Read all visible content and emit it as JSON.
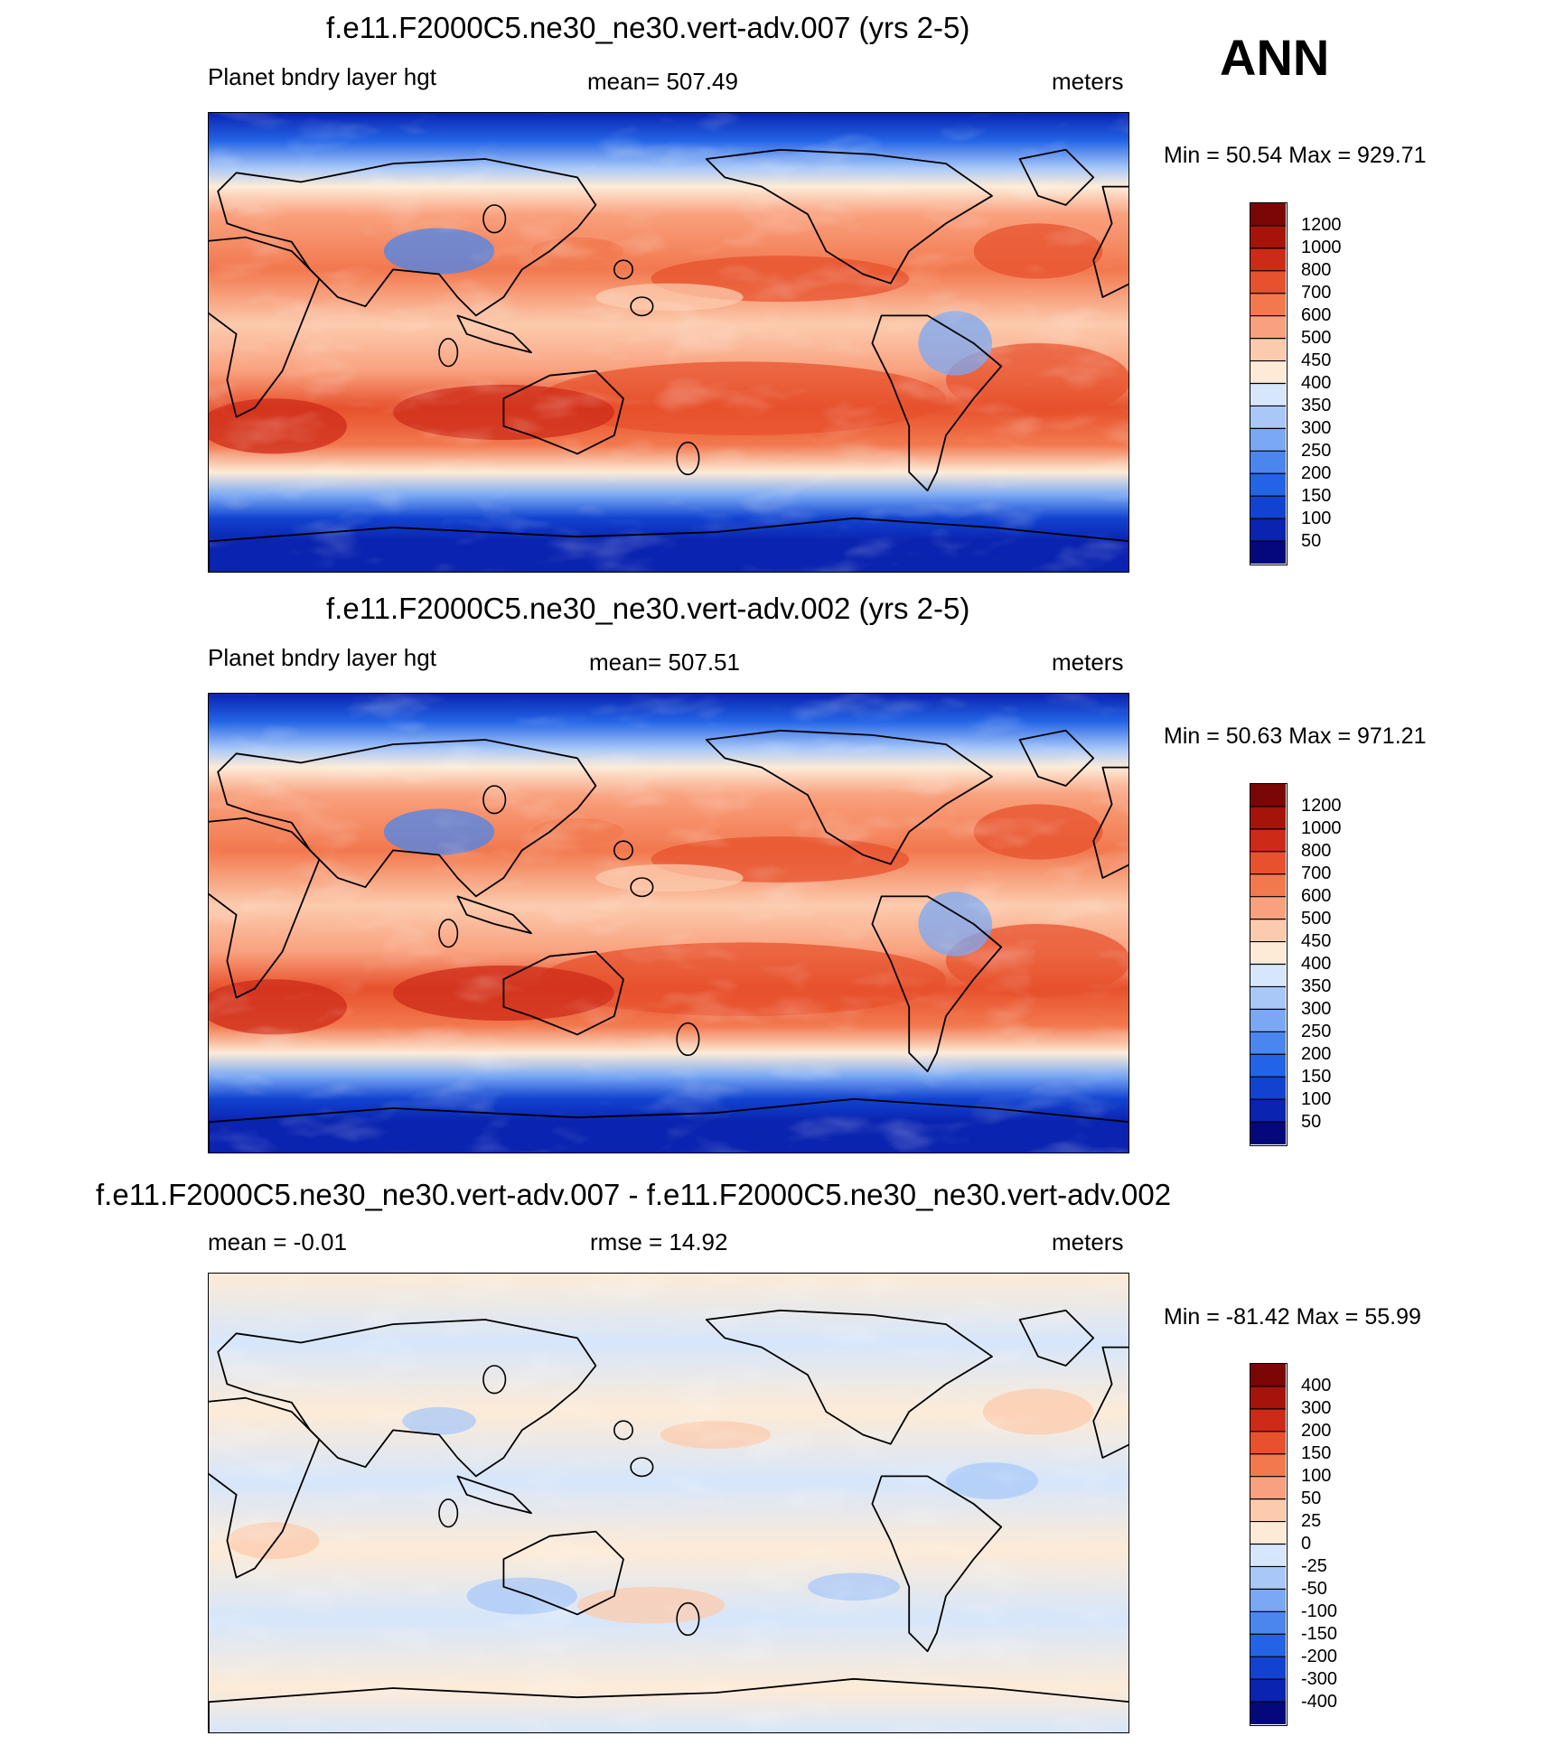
{
  "season": "ANN",
  "colors": {
    "abs": [
      "#04087a",
      "#0a23b0",
      "#1143d0",
      "#2364e6",
      "#4a86ee",
      "#7aa8f4",
      "#a9c8f8",
      "#d6e6fb",
      "#fdebd7",
      "#fccbae",
      "#f9a17e",
      "#f2784e",
      "#e7512d",
      "#cd2b18",
      "#a5130b",
      "#7a0606"
    ],
    "diff": [
      "#04087a",
      "#0a23b0",
      "#1143d0",
      "#2364e6",
      "#4a86ee",
      "#7aa8f4",
      "#a9c8f8",
      "#d6e6fb",
      "#fdebd7",
      "#fccbae",
      "#f9a17e",
      "#f2784e",
      "#e7512d",
      "#cd2b18",
      "#a5130b",
      "#7a0606"
    ],
    "polar": "#0a23b0",
    "tropicalWarm": "#f2784e",
    "coast": "#000000"
  },
  "panels": [
    {
      "title": "f.e11.F2000C5.ne30_ne30.vert-adv.007 (yrs 2-5)",
      "variable": "Planet bndry layer hgt",
      "stat": "mean= 507.49",
      "units": "meters",
      "minmax": "Min =  50.54 Max = 929.71",
      "kind": "abs",
      "levels": [
        "1200",
        "1000",
        "800",
        "700",
        "600",
        "500",
        "450",
        "400",
        "350",
        "300",
        "250",
        "200",
        "150",
        "100",
        "50"
      ]
    },
    {
      "title": "f.e11.F2000C5.ne30_ne30.vert-adv.002 (yrs 2-5)",
      "variable": "Planet bndry layer hgt",
      "stat": "mean= 507.51",
      "units": "meters",
      "minmax": "Min =  50.63 Max = 971.21",
      "kind": "abs",
      "levels": [
        "1200",
        "1000",
        "800",
        "700",
        "600",
        "500",
        "450",
        "400",
        "350",
        "300",
        "250",
        "200",
        "150",
        "100",
        "50"
      ]
    },
    {
      "title": "f.e11.F2000C5.ne30_ne30.vert-adv.007 - f.e11.F2000C5.ne30_ne30.vert-adv.002",
      "variable": "mean =  -0.01",
      "stat": "rmse =  14.92",
      "units": "meters",
      "minmax": "Min = -81.42 Max =  55.99",
      "kind": "diff",
      "levels": [
        "400",
        "300",
        "200",
        "150",
        "100",
        "50",
        "25",
        "0",
        "-25",
        "-50",
        "-100",
        "-150",
        "-200",
        "-300",
        "-400"
      ]
    }
  ],
  "chart_data": {
    "type": "heatmap",
    "projection": "cylindrical equidistant, Pacific-centered (lon 0 to 360)",
    "season": "ANN",
    "panels": [
      {
        "name": "vert-adv.007",
        "mean": 507.49,
        "min": 50.54,
        "max": 929.71,
        "units": "meters",
        "contour_levels": [
          50,
          100,
          150,
          200,
          250,
          300,
          350,
          400,
          450,
          500,
          600,
          700,
          800,
          1000,
          1200
        ]
      },
      {
        "name": "vert-adv.002",
        "mean": 507.51,
        "min": 50.63,
        "max": 971.21,
        "units": "meters",
        "contour_levels": [
          50,
          100,
          150,
          200,
          250,
          300,
          350,
          400,
          450,
          500,
          600,
          700,
          800,
          1000,
          1200
        ]
      },
      {
        "name": "vert-adv.007 - vert-adv.002",
        "mean": -0.01,
        "rmse": 14.92,
        "min": -81.42,
        "max": 55.99,
        "units": "meters",
        "contour_levels": [
          -400,
          -300,
          -200,
          -150,
          -100,
          -50,
          -25,
          0,
          25,
          50,
          100,
          150,
          200,
          300,
          400
        ]
      }
    ]
  }
}
